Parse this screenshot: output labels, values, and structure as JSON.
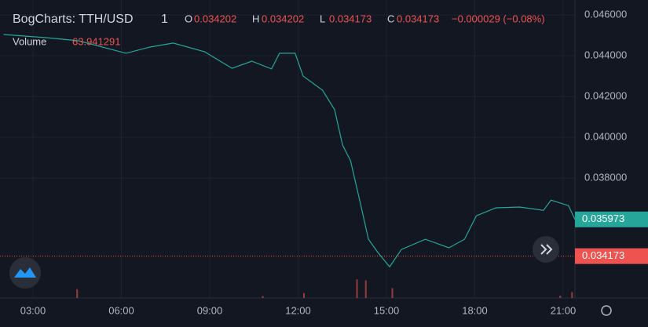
{
  "chart_data": {
    "type": "line",
    "title": "BogCharts: TTH/USD",
    "interval": "1",
    "ohlc": [
      {
        "label": "O",
        "value": 0.034202
      },
      {
        "label": "H",
        "value": 0.034202
      },
      {
        "label": "L",
        "value": 0.034173
      },
      {
        "label": "C",
        "value": 0.034173
      }
    ],
    "change": "−0.000029 (−0.08%)",
    "volume_label": "Volume",
    "volume_value": 63.941291,
    "series": [
      {
        "color": "#26a69a",
        "x": [
          2.0,
          3.48,
          4.55,
          6.16,
          6.96,
          7.76,
          8.83,
          9.76,
          10.43,
          11.1,
          11.37,
          11.9,
          12.17,
          12.83,
          13.24,
          13.51,
          13.78,
          14.12,
          14.39,
          14.71,
          15.11,
          15.51,
          16.32,
          17.12,
          17.65,
          18.05,
          18.72,
          19.52,
          20.33,
          20.59,
          21.18,
          21.4
        ],
        "values": [
          0.04504,
          0.04488,
          0.04473,
          0.04412,
          0.04442,
          0.04462,
          0.04419,
          0.04338,
          0.04373,
          0.04335,
          0.04412,
          0.04412,
          0.043,
          0.04231,
          0.04135,
          0.03962,
          0.03885,
          0.03673,
          0.035,
          0.03435,
          0.03365,
          0.0345,
          0.035,
          0.03458,
          0.035,
          0.03615,
          0.03654,
          0.03658,
          0.03642,
          0.03692,
          0.03665,
          0.03597
        ]
      }
    ],
    "volume": {
      "color": "#ef5350",
      "x": [
        4.5,
        10.8,
        12.2,
        14.0,
        14.3,
        15.2,
        20.9,
        21.3
      ],
      "values": [
        45,
        10,
        25,
        95,
        90,
        50,
        12,
        30
      ],
      "lim": [
        0,
        400
      ]
    },
    "price_tags": [
      {
        "value": 0.035973,
        "color": "#26a69a"
      },
      {
        "value": 0.034173,
        "color": "#ef5350"
      }
    ],
    "xlim": [
      1.88,
      21.4
    ],
    "xticks": [
      {
        "value": 3,
        "label": "03:00"
      },
      {
        "value": 6,
        "label": "06:00"
      },
      {
        "value": 9,
        "label": "09:00"
      },
      {
        "value": 12,
        "label": "12:00"
      },
      {
        "value": 15,
        "label": "15:00"
      },
      {
        "value": 18,
        "label": "18:00"
      },
      {
        "value": 21,
        "label": "21:00"
      }
    ],
    "ylim": [
      0.03212,
      0.04673
    ],
    "yticks": [
      {
        "value": 0.038,
        "label": "0.038000"
      },
      {
        "value": 0.04,
        "label": "0.040000"
      },
      {
        "value": 0.042,
        "label": "0.042000"
      },
      {
        "value": 0.044,
        "label": "0.044000"
      },
      {
        "value": 0.046,
        "label": "0.046000"
      }
    ],
    "grid": true
  }
}
